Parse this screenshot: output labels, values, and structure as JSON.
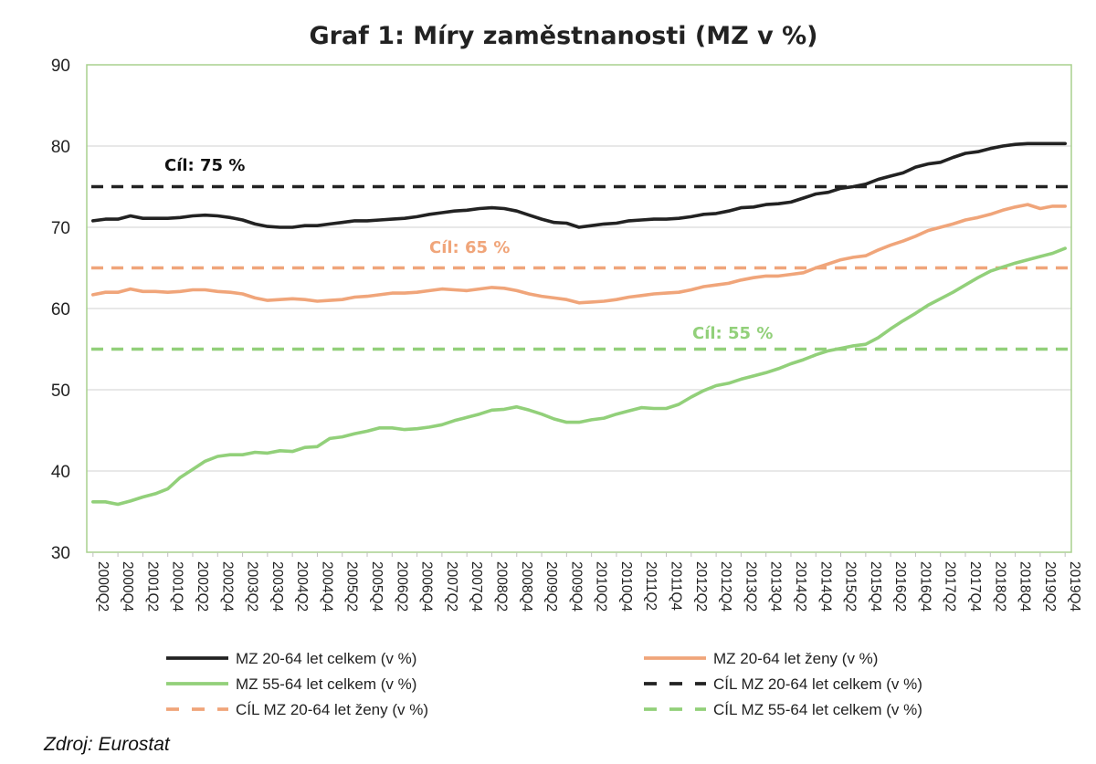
{
  "source": "Zdroj: Eurostat",
  "chart_data": {
    "type": "line",
    "title": "Graf 1: Míry zaměstnanosti (MZ v %)",
    "xlabel": "",
    "ylabel": "",
    "ylim": [
      30,
      90
    ],
    "yticks": [
      30,
      40,
      50,
      60,
      70,
      80,
      90
    ],
    "grid": "horizontal",
    "legend_position": "bottom",
    "x_tick_labels": [
      "2000Q2",
      "2000Q4",
      "2001Q2",
      "2001Q4",
      "2002Q2",
      "2002Q4",
      "2003Q2",
      "2003Q4",
      "2004Q2",
      "2004Q4",
      "2005Q2",
      "2005Q4",
      "2006Q2",
      "2006Q4",
      "2007Q2",
      "2007Q4",
      "2008Q2",
      "2008Q4",
      "2009Q2",
      "2009Q4",
      "2010Q2",
      "2010Q4",
      "2011Q2",
      "2011Q4",
      "2012Q2",
      "2012Q4",
      "2013Q2",
      "2013Q4",
      "2014Q2",
      "2014Q4",
      "2015Q2",
      "2015Q4",
      "2016Q2",
      "2016Q4",
      "2017Q2",
      "2017Q4",
      "2018Q2",
      "2018Q4",
      "2019Q2",
      "2019Q4"
    ],
    "x": [
      "2000Q2",
      "2000Q3",
      "2000Q4",
      "2001Q1",
      "2001Q2",
      "2001Q3",
      "2001Q4",
      "2002Q1",
      "2002Q2",
      "2002Q3",
      "2002Q4",
      "2003Q1",
      "2003Q2",
      "2003Q3",
      "2003Q4",
      "2004Q1",
      "2004Q2",
      "2004Q3",
      "2004Q4",
      "2005Q1",
      "2005Q2",
      "2005Q3",
      "2005Q4",
      "2006Q1",
      "2006Q2",
      "2006Q3",
      "2006Q4",
      "2007Q1",
      "2007Q2",
      "2007Q3",
      "2007Q4",
      "2008Q1",
      "2008Q2",
      "2008Q3",
      "2008Q4",
      "2009Q1",
      "2009Q2",
      "2009Q3",
      "2009Q4",
      "2010Q1",
      "2010Q2",
      "2010Q3",
      "2010Q4",
      "2011Q1",
      "2011Q2",
      "2011Q3",
      "2011Q4",
      "2012Q1",
      "2012Q2",
      "2012Q3",
      "2012Q4",
      "2013Q1",
      "2013Q2",
      "2013Q3",
      "2013Q4",
      "2014Q1",
      "2014Q2",
      "2014Q3",
      "2014Q4",
      "2015Q1",
      "2015Q2",
      "2015Q3",
      "2015Q4",
      "2016Q1",
      "2016Q2",
      "2016Q3",
      "2016Q4",
      "2017Q1",
      "2017Q2",
      "2017Q3",
      "2017Q4",
      "2018Q1",
      "2018Q2",
      "2018Q3",
      "2018Q4",
      "2019Q1",
      "2019Q2",
      "2019Q3",
      "2019Q4"
    ],
    "series": [
      {
        "name": "MZ 20-64 let celkem (v %)",
        "color": "#222222",
        "style": "solid",
        "values": [
          70.8,
          71.0,
          71.0,
          71.4,
          71.1,
          71.1,
          71.1,
          71.2,
          71.4,
          71.5,
          71.4,
          71.2,
          70.9,
          70.4,
          70.1,
          70.0,
          70.0,
          70.2,
          70.2,
          70.4,
          70.6,
          70.8,
          70.8,
          70.9,
          71.0,
          71.1,
          71.3,
          71.6,
          71.8,
          72.0,
          72.1,
          72.3,
          72.4,
          72.3,
          72.0,
          71.5,
          71.0,
          70.6,
          70.5,
          70.0,
          70.2,
          70.4,
          70.5,
          70.8,
          70.9,
          71.0,
          71.0,
          71.1,
          71.3,
          71.6,
          71.7,
          72.0,
          72.4,
          72.5,
          72.8,
          72.9,
          73.1,
          73.6,
          74.1,
          74.3,
          74.8,
          75.0,
          75.3,
          75.9,
          76.3,
          76.7,
          77.4,
          77.8,
          78.0,
          78.6,
          79.1,
          79.3,
          79.7,
          80.0,
          80.2,
          80.3,
          80.3,
          80.3,
          80.3
        ]
      },
      {
        "name": "MZ 20-64 let ženy (v %)",
        "color": "#f0a57a",
        "style": "solid",
        "values": [
          61.7,
          62.0,
          62.0,
          62.4,
          62.1,
          62.1,
          62.0,
          62.1,
          62.3,
          62.3,
          62.1,
          62.0,
          61.8,
          61.3,
          61.0,
          61.1,
          61.2,
          61.1,
          60.9,
          61.0,
          61.1,
          61.4,
          61.5,
          61.7,
          61.9,
          61.9,
          62.0,
          62.2,
          62.4,
          62.3,
          62.2,
          62.4,
          62.6,
          62.5,
          62.2,
          61.8,
          61.5,
          61.3,
          61.1,
          60.7,
          60.8,
          60.9,
          61.1,
          61.4,
          61.6,
          61.8,
          61.9,
          62.0,
          62.3,
          62.7,
          62.9,
          63.1,
          63.5,
          63.8,
          64.0,
          64.0,
          64.2,
          64.4,
          65.0,
          65.5,
          66.0,
          66.3,
          66.5,
          67.2,
          67.8,
          68.3,
          68.9,
          69.6,
          70.0,
          70.4,
          70.9,
          71.2,
          71.6,
          72.1,
          72.5,
          72.8,
          72.3,
          72.6,
          72.6
        ]
      },
      {
        "name": "MZ 55-64 let celkem (v %)",
        "color": "#92d07a",
        "style": "solid",
        "values": [
          36.2,
          36.2,
          35.9,
          36.3,
          36.8,
          37.2,
          37.8,
          39.2,
          40.2,
          41.2,
          41.8,
          42.0,
          42.0,
          42.3,
          42.2,
          42.5,
          42.4,
          42.9,
          43.0,
          44.0,
          44.2,
          44.6,
          44.9,
          45.3,
          45.3,
          45.1,
          45.2,
          45.4,
          45.7,
          46.2,
          46.6,
          47.0,
          47.5,
          47.6,
          47.9,
          47.5,
          47.0,
          46.4,
          46.0,
          46.0,
          46.3,
          46.5,
          47.0,
          47.4,
          47.8,
          47.7,
          47.7,
          48.2,
          49.1,
          49.9,
          50.5,
          50.8,
          51.3,
          51.7,
          52.1,
          52.6,
          53.2,
          53.7,
          54.3,
          54.8,
          55.1,
          55.4,
          55.6,
          56.4,
          57.5,
          58.5,
          59.4,
          60.4,
          61.2,
          62.0,
          62.9,
          63.8,
          64.6,
          65.1,
          65.6,
          66.0,
          66.4,
          66.8,
          67.4
        ]
      },
      {
        "name": "CÍL MZ 20-64 let celkem (v %)",
        "color": "#222222",
        "style": "dashed",
        "value": 75,
        "annotation": "Cíl: 75 %"
      },
      {
        "name": "CÍL MZ 20-64 let ženy (v %)",
        "color": "#f0a57a",
        "style": "dashed",
        "value": 65,
        "annotation": "Cíl: 65 %"
      },
      {
        "name": "CÍL MZ 55-64 let celkem (v %)",
        "color": "#92d07a",
        "style": "dashed",
        "value": 55,
        "annotation": "Cíl: 55 %"
      }
    ]
  }
}
